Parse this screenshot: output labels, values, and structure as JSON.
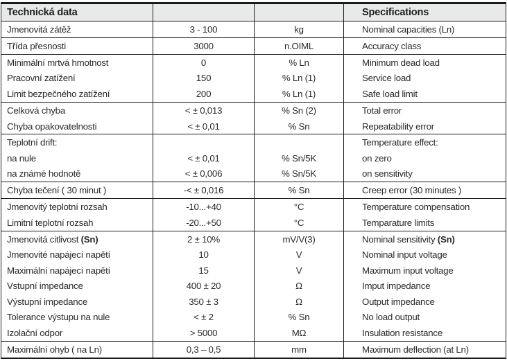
{
  "colors": {
    "header_background": "#e8eaea",
    "border": "#1a1a1a",
    "text": "#2a2a2a",
    "page_background": "#ffffff"
  },
  "table": {
    "header": {
      "czech_title": "Technická data",
      "english_title": "Specifications"
    },
    "rows": [
      {
        "czech_label": "Jmenovitá zátěž",
        "value": "3 - 100",
        "unit": "kg",
        "english_label": "Nominal capacities (Ln)",
        "group_end": true
      },
      {
        "czech_label": "Třída přesnosti",
        "value": "3000",
        "unit": "n.OIML",
        "english_label": "Accuracy class",
        "group_end": true
      },
      {
        "czech_label": "Minimální mrtvá hmotnost",
        "value": "0",
        "unit": "% Ln",
        "english_label": "Minimum dead load",
        "group_end": false
      },
      {
        "czech_label": "Pracovní zatížení",
        "value": "150",
        "unit": "% Ln (1)",
        "english_label": "Service load",
        "group_end": false
      },
      {
        "czech_label": "Limit bezpečného zatížení",
        "value": "200",
        "unit": "% Ln (1)",
        "english_label": "Safe load limit",
        "group_end": true
      },
      {
        "czech_label": "Celková chyba",
        "value": "< ± 0,013",
        "unit": "% Sn (2)",
        "english_label": "Total error",
        "group_end": false
      },
      {
        "czech_label": "Chyba opakovatelnosti",
        "value": "< ± 0,01",
        "unit": "% Sn",
        "english_label": "Repeatability error",
        "group_end": true
      },
      {
        "czech_label": "Teplotní drift:",
        "value": "",
        "unit": "",
        "english_label": "Temperature effect:",
        "group_end": false
      },
      {
        "czech_label": "na nule",
        "value": "< ± 0,01",
        "unit": "% Sn/5K",
        "english_label": "on zero",
        "group_end": false
      },
      {
        "czech_label": "na známé hodnotě",
        "value": "< ± 0,006",
        "unit": "% Sn/5K",
        "english_label": "on sensitivity",
        "group_end": true
      },
      {
        "czech_label": "Chyba tečení ( 30 minut )",
        "value": "-< ± 0,016",
        "unit": "% Sn",
        "english_label": "Creep error (30 minutes )",
        "group_end": true
      },
      {
        "czech_label": "Jmenovitý teplotní rozsah",
        "value": "-10...+40",
        "unit": "°C",
        "english_label": "Temperature compensation",
        "group_end": false
      },
      {
        "czech_label": "Limitní teplotní rozsah",
        "value": "-20...+50",
        "unit": "°C",
        "english_label": "Temparature limits",
        "group_end": true
      },
      {
        "czech_label": "Jmenovitá citlivost ",
        "czech_label_bold": "(Sn)",
        "value": "2 ± 10%",
        "unit": "mV/V(3)",
        "english_label": "Nominal sensitivity ",
        "english_label_bold": "(Sn)",
        "group_end": false
      },
      {
        "czech_label": "Jmenovité napájecí napětí",
        "value": "10",
        "unit": "V",
        "english_label": "Nominal input voltage",
        "group_end": false
      },
      {
        "czech_label": "Maximální napájecí napětí",
        "value": "15",
        "unit": "V",
        "english_label": "Maximum input voltage",
        "group_end": false
      },
      {
        "czech_label": "Vstupní impedance",
        "value": "400 ± 20",
        "unit": "Ω",
        "english_label": "Imput impedance",
        "group_end": false
      },
      {
        "czech_label": "Výstupní impedance",
        "value": "350 ± 3",
        "unit": "Ω",
        "english_label": "Output impedance",
        "group_end": false
      },
      {
        "czech_label": "Tolerance výstupu na nule",
        "value": "< ± 2",
        "unit": "% Sn",
        "english_label": "No load output",
        "group_end": false
      },
      {
        "czech_label": "Izolační odpor",
        "value": "> 5000",
        "unit": "MΩ",
        "english_label": "Insulation resistance",
        "group_end": true
      },
      {
        "czech_label": "Maximální ohyb ( na Ln)",
        "value": "0,3 – 0,5",
        "unit": "mm",
        "english_label": "Maximum deflection (at Ln)",
        "group_end": false
      }
    ]
  }
}
